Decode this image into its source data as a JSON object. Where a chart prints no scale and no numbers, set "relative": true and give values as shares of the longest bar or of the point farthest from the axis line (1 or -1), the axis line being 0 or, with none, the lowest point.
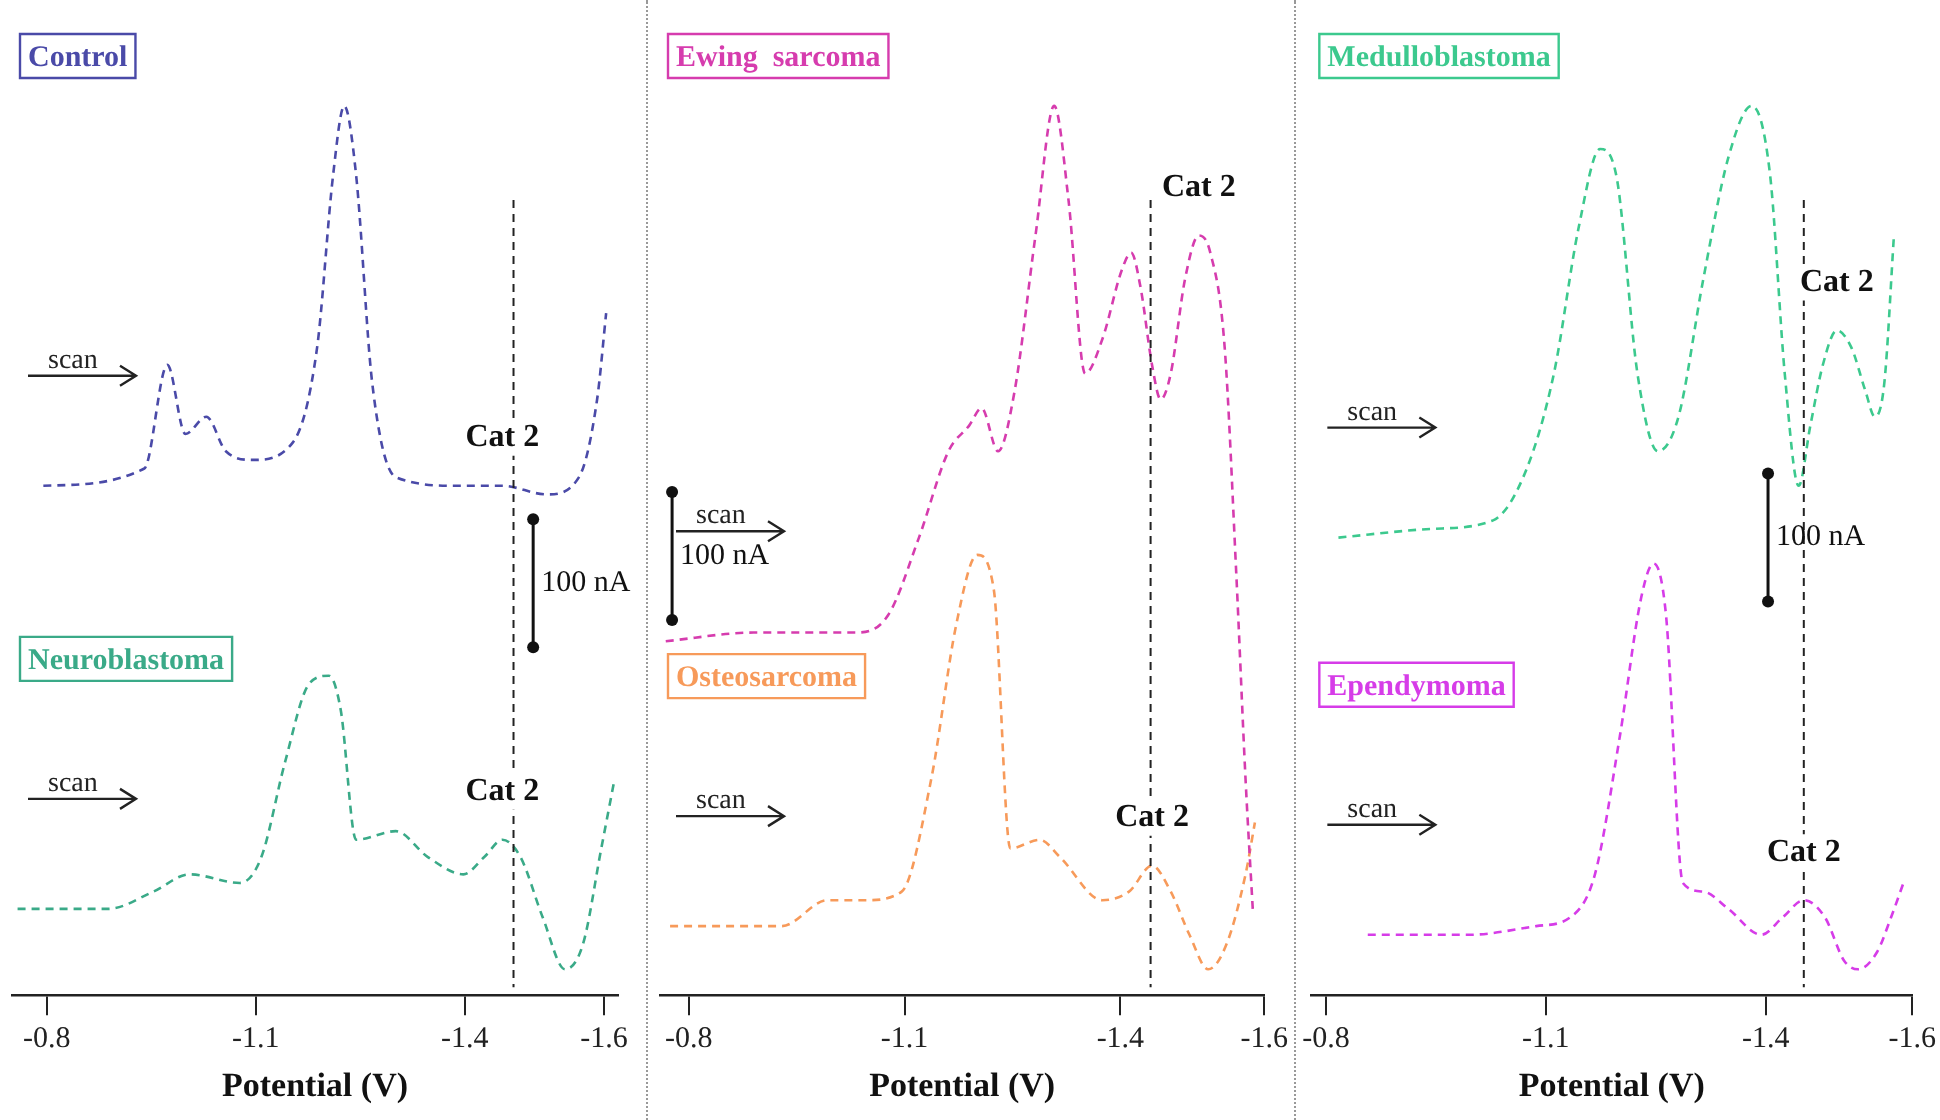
{
  "chart_data": [
    {
      "type": "line",
      "xlabel": "Potential (V)",
      "xlim": [
        -0.75,
        -1.62
      ],
      "xticks": [
        -0.8,
        -1.1,
        -1.4,
        -1.6
      ],
      "relative": true,
      "tick_labels": "x",
      "grid": false,
      "legend": false,
      "marker": "none",
      "line_style": "dashed",
      "series": [
        {
          "name": "Control",
          "color": "#4a4aa8",
          "x": [
            -0.795,
            -0.94,
            -0.973,
            -0.999,
            -1.029,
            -1.057,
            -1.096,
            -1.153,
            -1.188,
            -1.211,
            -1.227,
            -1.244,
            -1.267,
            -1.301,
            -1.392,
            -1.454,
            -1.518,
            -1.564,
            -1.59,
            -1.603
          ],
          "values": [
            0.56,
            0.58,
            0.7,
            0.62,
            0.64,
            0.6,
            0.59,
            0.61,
            0.72,
            0.92,
            1.0,
            0.92,
            0.68,
            0.57,
            0.56,
            0.56,
            0.55,
            0.57,
            0.66,
            0.76
          ]
        },
        {
          "name": "Neuroblastoma",
          "color": "#3aaa88",
          "x": [
            -0.758,
            -0.888,
            -0.953,
            -1.005,
            -1.077,
            -1.108,
            -1.142,
            -1.176,
            -1.205,
            -1.222,
            -1.244,
            -1.301,
            -1.347,
            -1.398,
            -1.428,
            -1.454,
            -1.48,
            -1.512,
            -1.544,
            -1.57,
            -1.596,
            -1.615
          ],
          "values": [
            0.07,
            0.07,
            0.09,
            0.11,
            0.1,
            0.13,
            0.24,
            0.33,
            0.34,
            0.3,
            0.15,
            0.16,
            0.13,
            0.11,
            0.13,
            0.15,
            0.13,
            0.06,
            0.0,
            0.03,
            0.14,
            0.22
          ]
        }
      ],
      "annotations": [
        "scan",
        "scan",
        "100 nA",
        "Cat 2",
        "Cat 2"
      ],
      "ref_lines": [
        {
          "axis": "x",
          "value": -1.47
        }
      ]
    },
    {
      "type": "line",
      "xlabel": "Potential (V)",
      "xlim": [
        -0.76,
        -1.6
      ],
      "xticks": [
        -0.8,
        -1.1,
        -1.4,
        -1.6
      ],
      "relative": true,
      "tick_labels": "x",
      "grid": false,
      "legend": false,
      "marker": "none",
      "line_style": "dashed",
      "series": [
        {
          "name": "Ewing  sarcoma",
          "color": "#d63cae",
          "x": [
            -0.768,
            -0.89,
            -1.032,
            -1.077,
            -1.12,
            -1.161,
            -1.19,
            -1.207,
            -1.23,
            -1.253,
            -1.282,
            -1.308,
            -1.328,
            -1.351,
            -1.375,
            -1.402,
            -1.415,
            -1.428,
            -1.444,
            -1.456,
            -1.47,
            -1.49,
            -1.509,
            -1.525,
            -1.545,
            -1.561,
            -1.574,
            -1.584
          ],
          "values": [
            0.38,
            0.39,
            0.39,
            0.41,
            0.5,
            0.6,
            0.63,
            0.65,
            0.6,
            0.67,
            0.85,
            1.0,
            0.89,
            0.69,
            0.73,
            0.81,
            0.83,
            0.79,
            0.7,
            0.66,
            0.69,
            0.8,
            0.85,
            0.83,
            0.72,
            0.46,
            0.22,
            0.07
          ]
        },
        {
          "name": "Osteosarcoma",
          "color": "#f79a5a",
          "x": [
            -0.774,
            -0.929,
            -0.993,
            -1.045,
            -1.096,
            -1.137,
            -1.172,
            -1.201,
            -1.224,
            -1.247,
            -1.288,
            -1.316,
            -1.375,
            -1.412,
            -1.444,
            -1.47,
            -1.496,
            -1.522,
            -1.548,
            -1.574,
            -1.587
          ],
          "values": [
            0.05,
            0.05,
            0.08,
            0.08,
            0.09,
            0.22,
            0.4,
            0.48,
            0.44,
            0.14,
            0.15,
            0.13,
            0.08,
            0.09,
            0.12,
            0.09,
            0.04,
            0.0,
            0.03,
            0.11,
            0.17
          ]
        }
      ],
      "annotations": [
        "scan",
        "scan",
        "100 nA",
        "Cat 2",
        "Cat 2"
      ],
      "ref_lines": [
        {
          "axis": "x",
          "value": -1.442
        }
      ]
    },
    {
      "type": "line",
      "xlabel": "Potential (V)",
      "xlim": [
        -0.78,
        -1.6
      ],
      "xticks": [
        -0.8,
        -1.1,
        -1.4,
        -1.6
      ],
      "relative": true,
      "tick_labels": "x",
      "grid": false,
      "legend": false,
      "marker": "none",
      "line_style": "dashed",
      "series": [
        {
          "name": "Medulloblastoma",
          "color": "#3cc98e",
          "x": [
            -0.817,
            -0.942,
            -1.028,
            -1.074,
            -1.111,
            -1.145,
            -1.174,
            -1.196,
            -1.225,
            -1.253,
            -1.281,
            -1.315,
            -1.349,
            -1.381,
            -1.406,
            -1.426,
            -1.445,
            -1.461,
            -1.478,
            -1.497,
            -1.517,
            -1.536,
            -1.549,
            -1.562,
            -1.575
          ],
          "values": [
            0.5,
            0.51,
            0.52,
            0.58,
            0.69,
            0.86,
            0.95,
            0.92,
            0.69,
            0.6,
            0.64,
            0.8,
            0.94,
            1.0,
            0.92,
            0.69,
            0.56,
            0.63,
            0.7,
            0.74,
            0.72,
            0.67,
            0.64,
            0.68,
            0.85
          ]
        },
        {
          "name": "Ependymoma",
          "color": "#d63ce8",
          "x": [
            -0.857,
            -0.995,
            -1.087,
            -1.133,
            -1.167,
            -1.201,
            -1.23,
            -1.247,
            -1.264,
            -1.287,
            -1.315,
            -1.349,
            -1.394,
            -1.423,
            -1.452,
            -1.481,
            -1.507,
            -1.526,
            -1.552,
            -1.571,
            -1.588
          ],
          "values": [
            0.04,
            0.04,
            0.05,
            0.06,
            0.11,
            0.27,
            0.43,
            0.47,
            0.41,
            0.1,
            0.09,
            0.07,
            0.04,
            0.06,
            0.08,
            0.06,
            0.01,
            0.0,
            0.02,
            0.06,
            0.1
          ]
        }
      ],
      "annotations": [
        "scan",
        "scan",
        "100 nA",
        "Cat 2",
        "Cat 2"
      ],
      "ref_lines": [
        {
          "axis": "x",
          "value": -1.452
        }
      ]
    }
  ]
}
